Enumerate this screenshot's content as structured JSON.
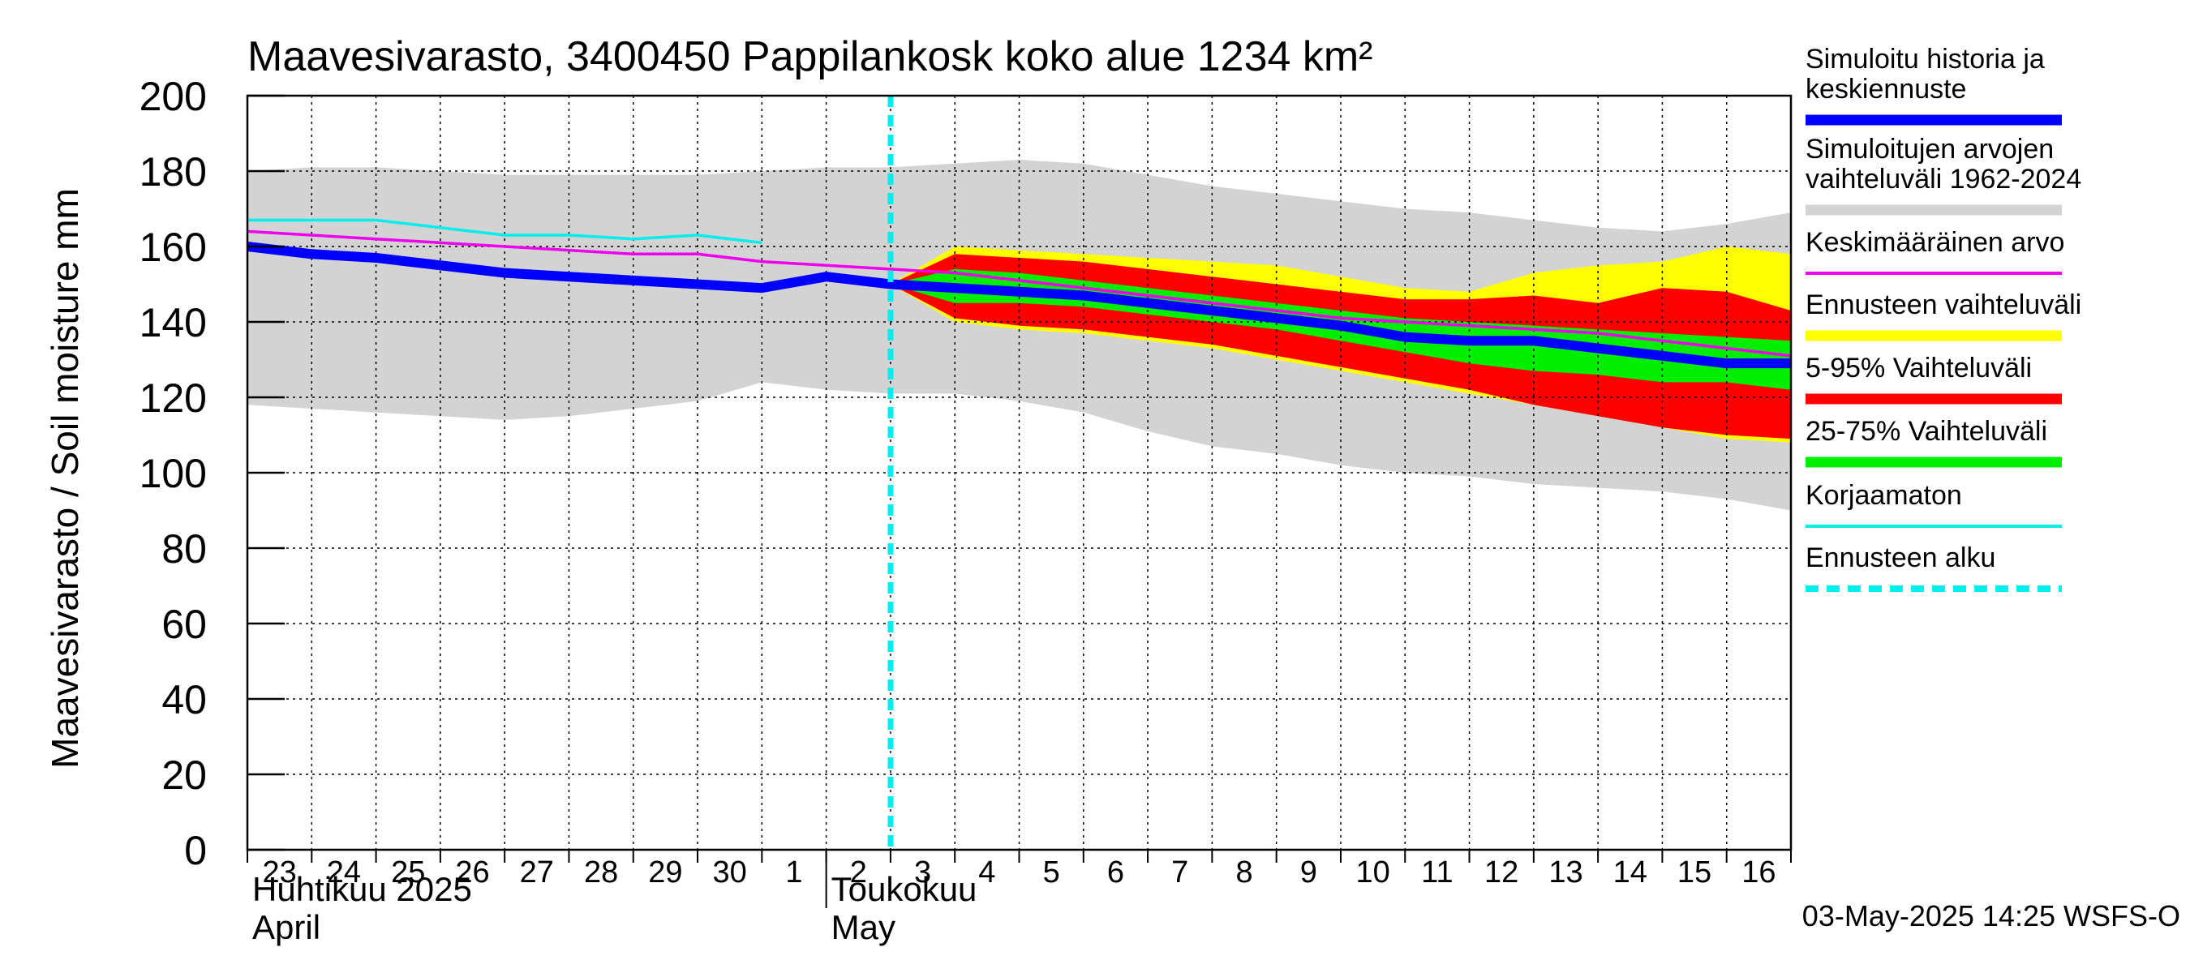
{
  "chart_data": {
    "type": "area",
    "title": "Maavesivarasto, 3400450 Pappilankosk koko alue 1234 km²",
    "ylabel": "Maavesivarasto / Soil moisture   mm",
    "ylim": [
      0,
      200
    ],
    "yticks": [
      "0",
      "20",
      "40",
      "60",
      "80",
      "100",
      "120",
      "140",
      "160",
      "180",
      "200"
    ],
    "xlim": [
      0,
      24
    ],
    "x_day_labels": [
      "23",
      "24",
      "25",
      "26",
      "27",
      "28",
      "29",
      "30",
      "1",
      "2",
      "3",
      "4",
      "5",
      "6",
      "7",
      "8",
      "9",
      "10",
      "11",
      "12",
      "13",
      "14",
      "15",
      "16"
    ],
    "month_labels": [
      {
        "line1": "Huhtikuu  2025",
        "line2": "April",
        "x": 0
      },
      {
        "line1": "Toukokuu",
        "line2": "May",
        "x": 9
      }
    ],
    "grid": true,
    "forecast_start_x": 10,
    "timestamp": "03-May-2025 14:25 WSFS-O",
    "colors": {
      "historical_range": "#d3d3d3",
      "forecast_range": "#ffff00",
      "p5_95": "#ff0000",
      "p25_75": "#00ee00",
      "median": "#0000ff",
      "mean": "#ee00ee",
      "uncorrected": "#00eeee",
      "forecast_start": "#00eeee"
    },
    "series": [
      {
        "name": "Simuloitujen arvojen vaihteluväli 1962-2024",
        "kind": "band",
        "x": [
          0,
          1,
          2,
          3,
          4,
          5,
          6,
          7,
          8,
          9,
          10,
          11,
          12,
          13,
          14,
          15,
          16,
          17,
          18,
          19,
          20,
          21,
          22,
          23,
          24
        ],
        "lower": [
          118,
          117,
          116,
          115,
          114,
          115,
          117,
          119,
          124,
          122,
          121,
          121,
          119,
          116,
          111,
          107,
          105,
          102,
          100,
          99,
          97,
          96,
          95,
          93,
          90
        ],
        "upper": [
          180,
          181,
          181,
          180,
          179,
          179,
          179,
          179,
          180,
          181,
          181,
          182,
          183,
          182,
          179,
          176,
          174,
          172,
          170,
          169,
          167,
          165,
          164,
          166,
          169
        ]
      },
      {
        "name": "Ennusteen vaihteluväli",
        "kind": "band",
        "x": [
          10,
          11,
          12,
          13,
          14,
          15,
          16,
          17,
          18,
          19,
          20,
          21,
          22,
          23,
          24
        ],
        "lower": [
          150,
          140,
          138,
          137,
          135,
          133,
          130,
          127,
          124,
          121,
          118,
          115,
          112,
          109,
          108
        ],
        "upper": [
          150,
          160,
          159,
          158,
          157,
          156,
          155,
          152,
          149,
          148,
          153,
          155,
          156,
          160,
          158
        ]
      },
      {
        "name": "5-95% Vaihteluväli",
        "kind": "band",
        "x": [
          10,
          11,
          12,
          13,
          14,
          15,
          16,
          17,
          18,
          19,
          20,
          21,
          22,
          23,
          24
        ],
        "lower": [
          150,
          141,
          139,
          138,
          136,
          134,
          131,
          128,
          125,
          122,
          118,
          115,
          112,
          110,
          109
        ],
        "upper": [
          150,
          158,
          157,
          156,
          154,
          152,
          150,
          148,
          146,
          146,
          147,
          145,
          149,
          148,
          143
        ]
      },
      {
        "name": "25-75% Vaihteluväli",
        "kind": "band",
        "x": [
          10,
          11,
          12,
          13,
          14,
          15,
          16,
          17,
          18,
          19,
          20,
          21,
          22,
          23,
          24
        ],
        "lower": [
          150,
          145,
          145,
          144,
          142,
          140,
          138,
          135,
          132,
          129,
          127,
          126,
          124,
          124,
          122
        ],
        "upper": [
          150,
          154,
          153,
          151,
          149,
          147,
          145,
          143,
          141,
          140,
          139,
          138,
          137,
          136,
          135
        ]
      },
      {
        "name": "Keskimääräinen arvo",
        "kind": "line",
        "x": [
          0,
          1,
          2,
          3,
          4,
          5,
          6,
          7,
          8,
          9,
          10,
          11,
          12,
          13,
          14,
          15,
          16,
          17,
          18,
          19,
          20,
          21,
          22,
          23,
          24
        ],
        "values": [
          164,
          163,
          162,
          161,
          160,
          159,
          158,
          158,
          156,
          155,
          154,
          153,
          151,
          149,
          147,
          145,
          143,
          141,
          140,
          139,
          138,
          137,
          135,
          133,
          131
        ]
      },
      {
        "name": "Korjaamaton",
        "kind": "line",
        "x": [
          0,
          1,
          2,
          3,
          4,
          5,
          6,
          7,
          8
        ],
        "values": [
          167,
          167,
          167,
          165,
          163,
          163,
          162,
          163,
          161
        ]
      },
      {
        "name": "Simuloitu historia ja keskiennuste",
        "kind": "line",
        "x": [
          0,
          1,
          2,
          3,
          4,
          5,
          6,
          7,
          8,
          9,
          10,
          11,
          12,
          13,
          14,
          15,
          16,
          17,
          18,
          19,
          20,
          21,
          22,
          23,
          24
        ],
        "values": [
          160,
          158,
          157,
          155,
          153,
          152,
          151,
          150,
          149,
          152,
          150,
          149,
          148,
          147,
          145,
          143,
          141,
          139,
          136,
          135,
          135,
          133,
          131,
          129,
          129
        ]
      }
    ],
    "legend": {
      "placement": "right",
      "items": [
        {
          "label": "Simuloitu historia ja\nkeskiennuste",
          "color": "#0000ff",
          "style": "thick"
        },
        {
          "label": "Simuloitujen arvojen\nvaihteluväli 1962-2024",
          "color": "#d3d3d3",
          "style": "thick"
        },
        {
          "label": "Keskimääräinen arvo",
          "color": "#ee00ee",
          "style": "thin"
        },
        {
          "label": "Ennusteen vaihteluväli",
          "color": "#ffff00",
          "style": "thick"
        },
        {
          "label": "5-95% Vaihteluväli",
          "color": "#ff0000",
          "style": "thick"
        },
        {
          "label": "25-75% Vaihteluväli",
          "color": "#00ee00",
          "style": "thick"
        },
        {
          "label": "Korjaamaton",
          "color": "#00eeee",
          "style": "thin"
        },
        {
          "label": "Ennusteen alku",
          "color": "#00eeee",
          "style": "dashed"
        }
      ]
    }
  }
}
